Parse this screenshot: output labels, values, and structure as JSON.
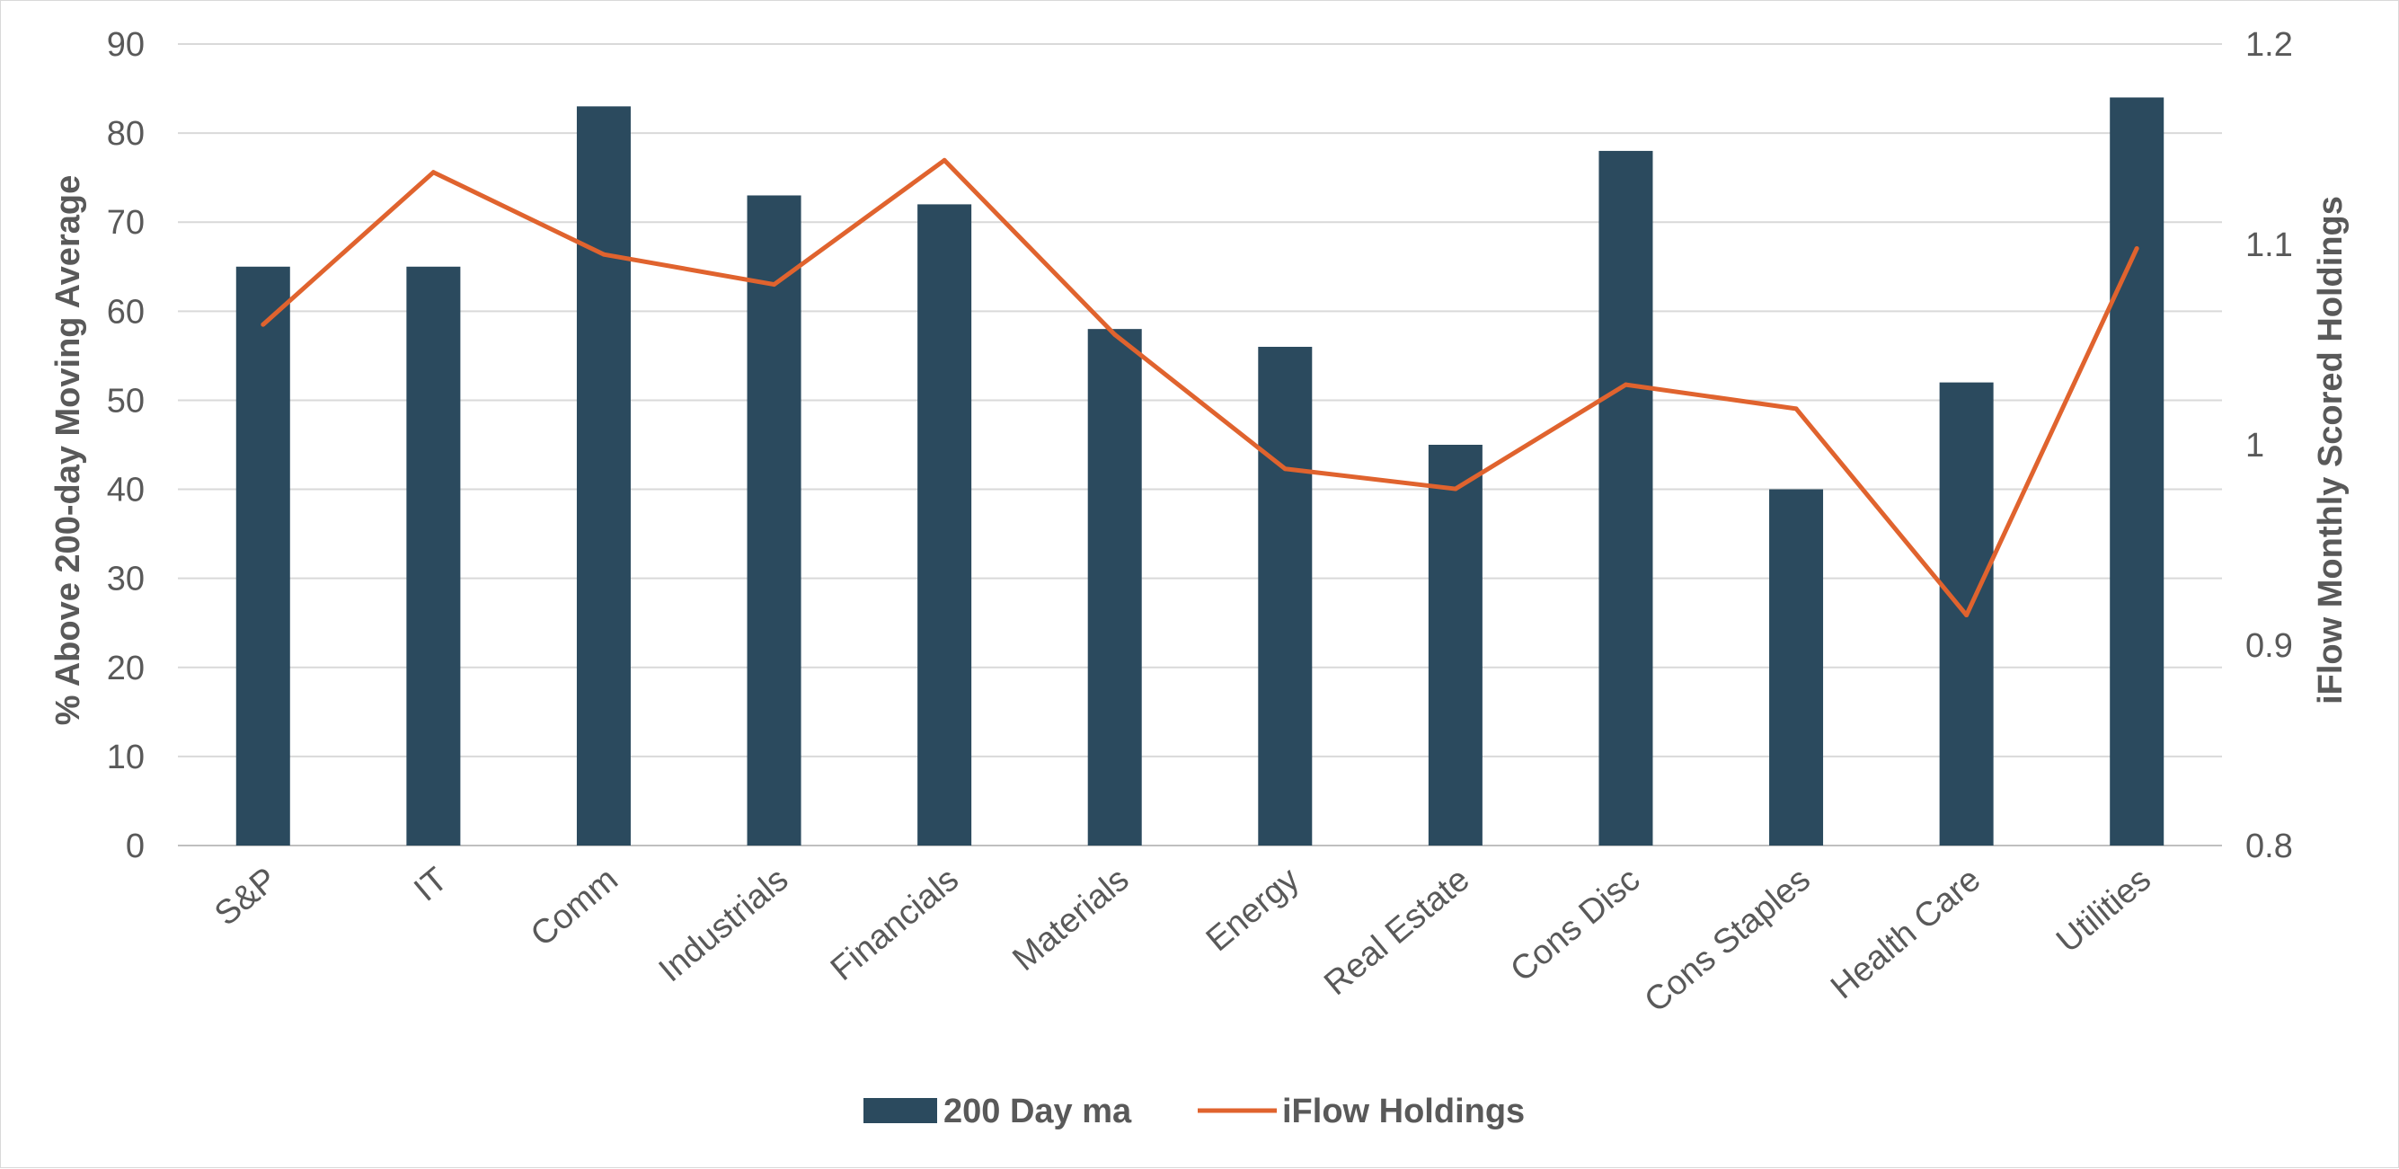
{
  "chart_data": {
    "type": "bar",
    "categories": [
      "S&P",
      "IT",
      "Comm",
      "Industrials",
      "Financials",
      "Materials",
      "Energy",
      "Real Estate",
      "Cons Disc",
      "Cons Staples",
      "Health Care",
      "Utilities"
    ],
    "series": [
      {
        "name": "200 Day ma",
        "type": "bar",
        "axis": "left",
        "color": "#2b4a5e",
        "values": [
          65,
          65,
          83,
          73,
          72,
          58,
          56,
          45,
          78,
          40,
          52,
          84
        ]
      },
      {
        "name": "iFlow Holdings",
        "type": "line",
        "axis": "right",
        "color": "#e0632e",
        "values": [
          1.06,
          1.136,
          1.095,
          1.08,
          1.142,
          1.055,
          0.988,
          0.978,
          1.03,
          1.018,
          0.915,
          1.098
        ]
      }
    ],
    "ylabel": "% Above 200-day Moving Average",
    "ylim": [
      0,
      90
    ],
    "yticks": [
      "0",
      "10",
      "20",
      "30",
      "40",
      "50",
      "60",
      "70",
      "80",
      "90"
    ],
    "y2label": "iFlow Monthly Scored Holdings",
    "y2lim": [
      0.8,
      1.2
    ],
    "y2ticks": [
      "0.8",
      "0.9",
      "1",
      "1.1",
      "1.2"
    ],
    "grid": true,
    "legend_position": "bottom"
  }
}
